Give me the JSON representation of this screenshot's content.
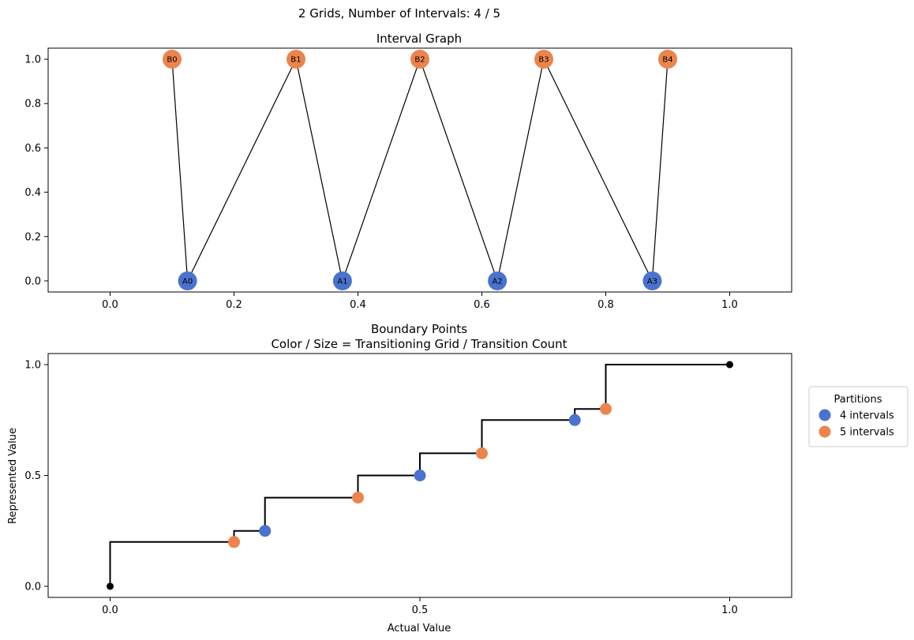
{
  "figure": {
    "suptitle": "2 Grids, Number of Intervals: 4 / 5"
  },
  "colors": {
    "grid_a": "#4a72cf",
    "grid_b": "#ec844d",
    "endpoint": "#000000",
    "line": "#000000"
  },
  "chart_data": [
    {
      "type": "scatter",
      "title": "Interval Graph",
      "xlabel": "",
      "ylabel": "",
      "xlim": [
        -0.1,
        1.1
      ],
      "ylim": [
        -0.05,
        1.05
      ],
      "xticks": [
        0.0,
        0.2,
        0.4,
        0.6,
        0.8,
        1.0
      ],
      "xtick_labels": [
        "0.0",
        "0.2",
        "0.4",
        "0.6",
        "0.8",
        "1.0"
      ],
      "yticks": [
        0.0,
        0.2,
        0.4,
        0.6,
        0.8,
        1.0
      ],
      "ytick_labels": [
        "0.0",
        "0.2",
        "0.4",
        "0.6",
        "0.8",
        "1.0"
      ],
      "nodes": [
        {
          "label": "A0",
          "x": 0.125,
          "y": 0.0,
          "grid": "a"
        },
        {
          "label": "A1",
          "x": 0.375,
          "y": 0.0,
          "grid": "a"
        },
        {
          "label": "A2",
          "x": 0.625,
          "y": 0.0,
          "grid": "a"
        },
        {
          "label": "A3",
          "x": 0.875,
          "y": 0.0,
          "grid": "a"
        },
        {
          "label": "B0",
          "x": 0.1,
          "y": 1.0,
          "grid": "b"
        },
        {
          "label": "B1",
          "x": 0.3,
          "y": 1.0,
          "grid": "b"
        },
        {
          "label": "B2",
          "x": 0.5,
          "y": 1.0,
          "grid": "b"
        },
        {
          "label": "B3",
          "x": 0.7,
          "y": 1.0,
          "grid": "b"
        },
        {
          "label": "B4",
          "x": 0.9,
          "y": 1.0,
          "grid": "b"
        }
      ],
      "edges": [
        [
          "B0",
          "A0"
        ],
        [
          "A0",
          "B1"
        ],
        [
          "B1",
          "A1"
        ],
        [
          "A1",
          "B2"
        ],
        [
          "B2",
          "A2"
        ],
        [
          "A2",
          "B3"
        ],
        [
          "B3",
          "A3"
        ],
        [
          "A3",
          "B4"
        ]
      ],
      "grid": false
    },
    {
      "type": "line",
      "title": "Boundary Points",
      "subtitle": "Color / Size = Transitioning Grid / Transition Count",
      "xlabel": "Actual Value",
      "ylabel": "Represented Value",
      "xlim": [
        -0.1,
        1.1
      ],
      "ylim": [
        -0.05,
        1.05
      ],
      "xticks": [
        0.0,
        0.5,
        1.0
      ],
      "xtick_labels": [
        "0.0",
        "0.5",
        "1.0"
      ],
      "yticks": [
        0.0,
        0.5,
        1.0
      ],
      "ytick_labels": [
        "0.0",
        "0.5",
        "1.0"
      ],
      "step_points": [
        {
          "x": 0.0,
          "y": 0.0
        },
        {
          "x": 0.0,
          "y": 0.2
        },
        {
          "x": 0.2,
          "y": 0.2
        },
        {
          "x": 0.2,
          "y": 0.25
        },
        {
          "x": 0.25,
          "y": 0.25
        },
        {
          "x": 0.25,
          "y": 0.4
        },
        {
          "x": 0.4,
          "y": 0.4
        },
        {
          "x": 0.4,
          "y": 0.5
        },
        {
          "x": 0.5,
          "y": 0.5
        },
        {
          "x": 0.5,
          "y": 0.6
        },
        {
          "x": 0.6,
          "y": 0.6
        },
        {
          "x": 0.6,
          "y": 0.75
        },
        {
          "x": 0.75,
          "y": 0.75
        },
        {
          "x": 0.75,
          "y": 0.8
        },
        {
          "x": 0.8,
          "y": 0.8
        },
        {
          "x": 0.8,
          "y": 1.0
        },
        {
          "x": 1.0,
          "y": 1.0
        }
      ],
      "endpoints": [
        {
          "x": 0.0,
          "y": 0.0
        },
        {
          "x": 1.0,
          "y": 1.0
        }
      ],
      "series": [
        {
          "name": "4 intervals",
          "grid": "a",
          "points": [
            {
              "x": 0.25,
              "y": 0.25
            },
            {
              "x": 0.5,
              "y": 0.5
            },
            {
              "x": 0.75,
              "y": 0.75
            }
          ]
        },
        {
          "name": "5 intervals",
          "grid": "b",
          "points": [
            {
              "x": 0.2,
              "y": 0.2
            },
            {
              "x": 0.4,
              "y": 0.4
            },
            {
              "x": 0.6,
              "y": 0.6
            },
            {
              "x": 0.8,
              "y": 0.8
            }
          ]
        }
      ],
      "legend": {
        "title": "Partitions",
        "placement": "outside right"
      },
      "grid": false
    }
  ]
}
